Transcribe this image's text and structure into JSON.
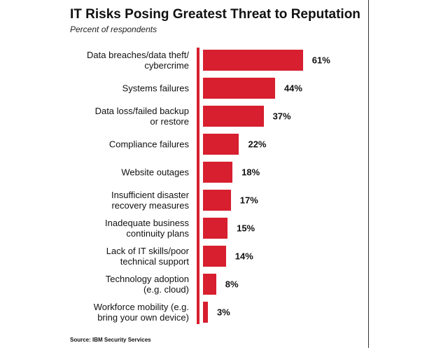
{
  "chart_data": {
    "type": "bar",
    "orientation": "horizontal",
    "title": "IT Risks Posing Greatest Threat to Reputation",
    "subtitle": "Percent of respondents",
    "source": "Source: IBM Security Services",
    "categories": [
      "Data breaches/data theft/\ncybercrime",
      "Systems failures",
      "Data loss/failed backup\nor restore",
      "Compliance failures",
      "Website outages",
      "Insufficient disaster\nrecovery measures",
      "Inadequate business\ncontinuity plans",
      "Lack of IT skills/poor\ntechnical support",
      "Technology adoption\n(e.g. cloud)",
      "Workforce mobility (e.g.\nbring your own device)"
    ],
    "values": [
      61,
      44,
      37,
      22,
      18,
      17,
      15,
      14,
      8,
      3
    ],
    "value_labels": [
      "61%",
      "44%",
      "37%",
      "22%",
      "18%",
      "17%",
      "15%",
      "14%",
      "8%",
      "3%"
    ],
    "color": "#d71f2f"
  }
}
